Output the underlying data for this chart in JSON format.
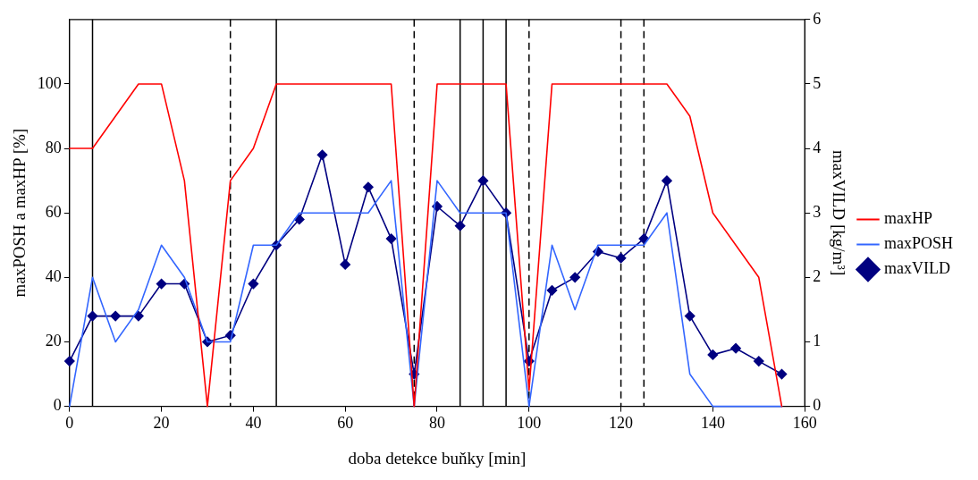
{
  "chart_data": {
    "type": "line",
    "xlabel": "doba detekce buňky [min]",
    "ylabel": "maxPOSH a maxHP [%]",
    "y2label": "maxVILD [kg/m³]",
    "x": [
      0,
      5,
      10,
      15,
      20,
      25,
      30,
      35,
      40,
      45,
      50,
      55,
      60,
      65,
      70,
      75,
      80,
      85,
      90,
      95,
      100,
      105,
      110,
      115,
      120,
      125,
      130,
      135,
      140,
      145,
      150,
      155
    ],
    "series": [
      {
        "name": "maxHP",
        "color": "#ff0000",
        "marker": "none",
        "values": [
          80,
          80,
          90,
          100,
          100,
          70,
          0,
          70,
          80,
          100,
          100,
          100,
          100,
          100,
          100,
          0,
          100,
          100,
          100,
          100,
          5,
          100,
          100,
          100,
          100,
          100,
          100,
          90,
          60,
          50,
          40,
          0
        ]
      },
      {
        "name": "maxPOSH",
        "color": "#3366ff",
        "marker": "none",
        "values": [
          0,
          40,
          20,
          30,
          50,
          40,
          20,
          20,
          50,
          50,
          60,
          60,
          60,
          60,
          70,
          0,
          70,
          60,
          60,
          60,
          0,
          50,
          30,
          50,
          50,
          50,
          60,
          10,
          0,
          0,
          0,
          0
        ]
      },
      {
        "name": "maxVILD",
        "color": "#000080",
        "marker": "diamond",
        "axis": "y2",
        "values": [
          0.7,
          1.4,
          1.4,
          1.4,
          1.9,
          1.9,
          1.0,
          1.1,
          1.9,
          2.5,
          2.9,
          3.9,
          2.2,
          3.4,
          2.6,
          0.5,
          3.1,
          2.8,
          3.5,
          3.0,
          0.7,
          1.8,
          2.0,
          2.4,
          2.3,
          2.6,
          3.5,
          1.4,
          0.8,
          0.9,
          0.7,
          0.5
        ]
      }
    ],
    "xlim": [
      0,
      160
    ],
    "xticks": [
      0,
      20,
      40,
      60,
      80,
      100,
      120,
      140,
      160
    ],
    "ylim": [
      0,
      120
    ],
    "yticks": [
      0,
      20,
      40,
      60,
      80,
      100
    ],
    "y2lim": [
      0,
      6
    ],
    "y2ticks": [
      0,
      1,
      2,
      3,
      4,
      5,
      6
    ],
    "ref_lines": [
      {
        "axis": "x",
        "value": 5,
        "color": "#000000",
        "line_style": "solid"
      },
      {
        "axis": "x",
        "value": 35,
        "color": "#000000",
        "line_style": "dashed"
      },
      {
        "axis": "x",
        "value": 45,
        "color": "#000000",
        "line_style": "solid"
      },
      {
        "axis": "x",
        "value": 75,
        "color": "#000000",
        "line_style": "dashed"
      },
      {
        "axis": "x",
        "value": 85,
        "color": "#000000",
        "line_style": "solid"
      },
      {
        "axis": "x",
        "value": 90,
        "color": "#000000",
        "line_style": "solid"
      },
      {
        "axis": "x",
        "value": 95,
        "color": "#000000",
        "line_style": "solid"
      },
      {
        "axis": "x",
        "value": 100,
        "color": "#000000",
        "line_style": "dashed"
      },
      {
        "axis": "x",
        "value": 120,
        "color": "#000000",
        "line_style": "dashed"
      },
      {
        "axis": "x",
        "value": 125,
        "color": "#000000",
        "line_style": "dashed"
      }
    ],
    "grid": false,
    "legend": "right"
  }
}
